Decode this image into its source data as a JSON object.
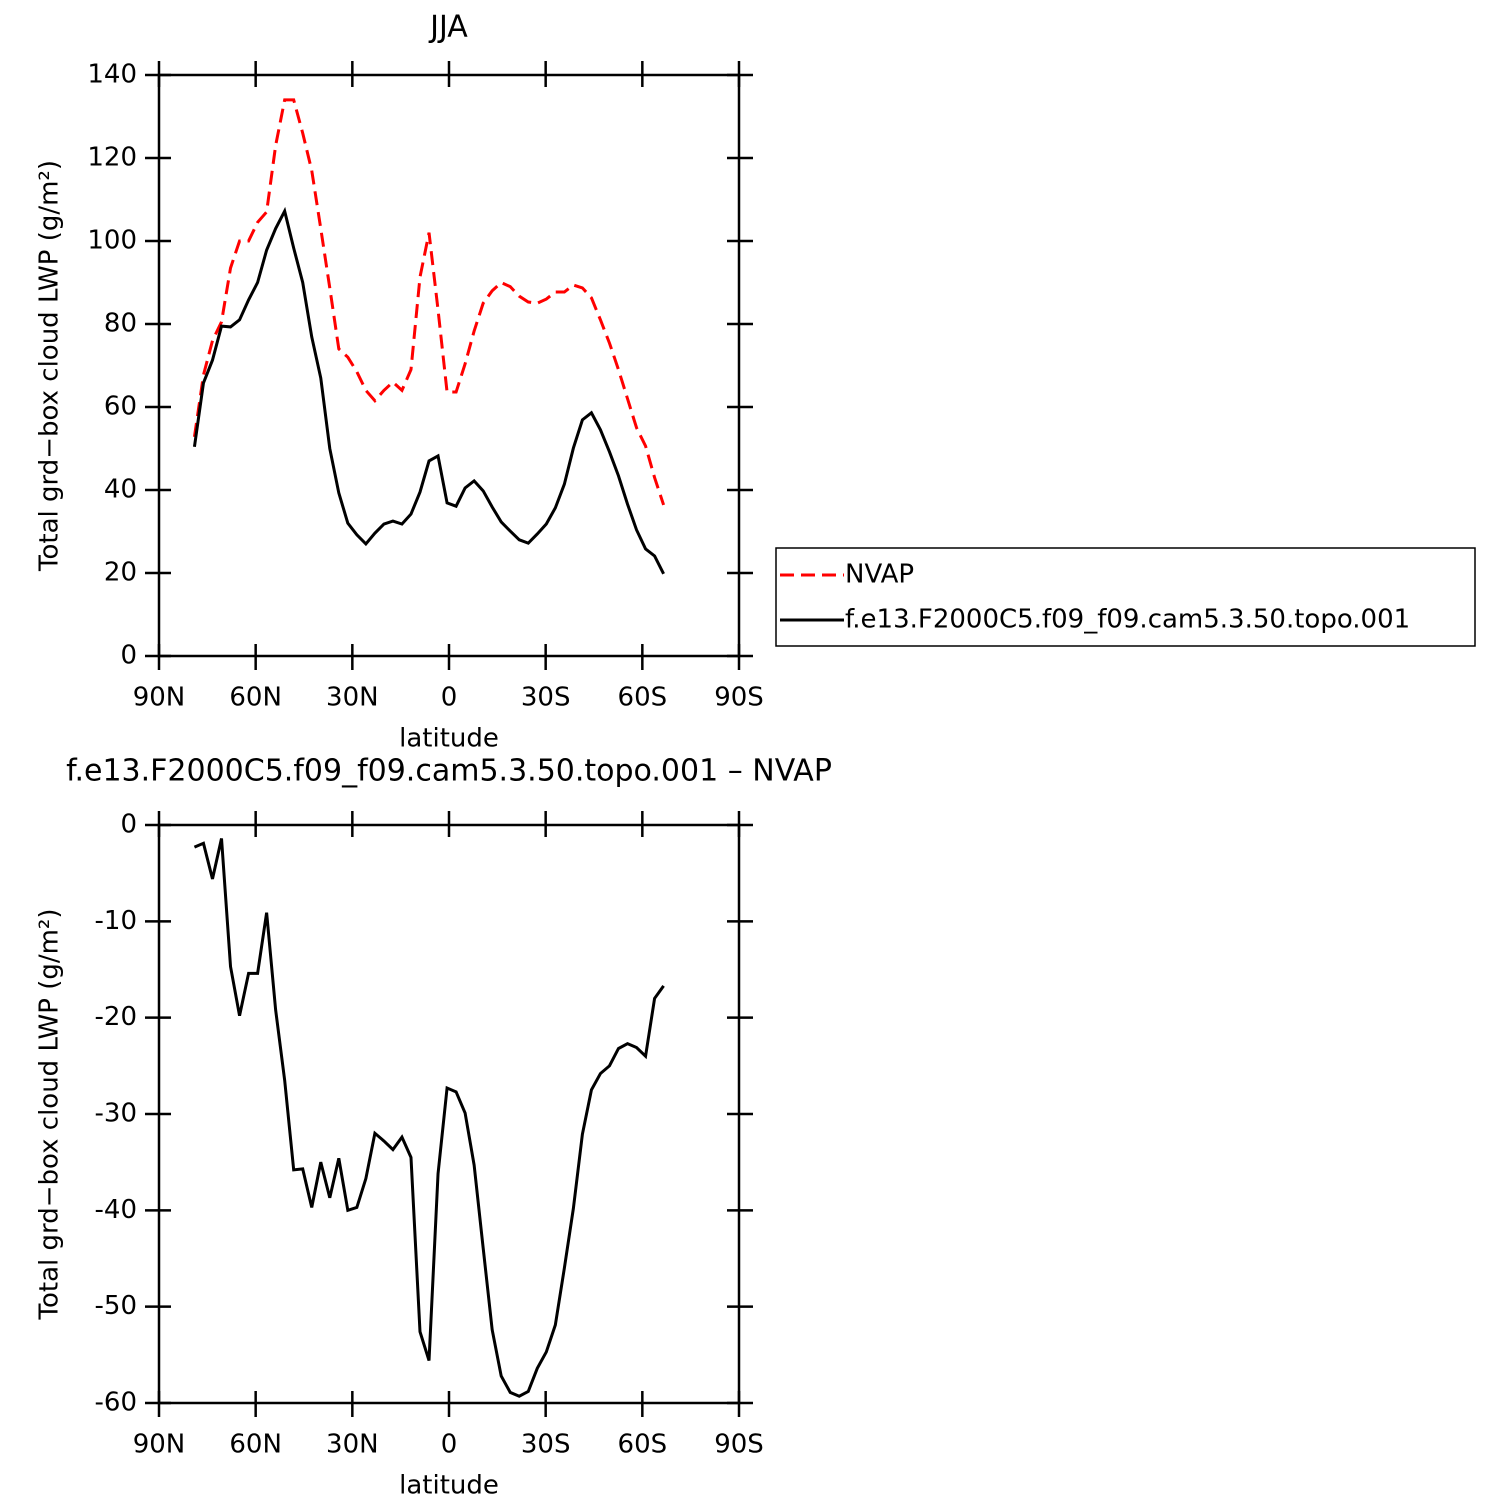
{
  "chart_data": [
    {
      "type": "line",
      "title": "JJA",
      "xlabel": "latitude",
      "ylabel": "Total grd−box cloud LWP (g/m²)",
      "x": [
        79,
        76.2,
        73.4,
        70.6,
        67.8,
        65,
        62.2,
        59.4,
        56.6,
        53.8,
        51,
        48.2,
        45.4,
        42.6,
        39.8,
        37,
        34.2,
        31.4,
        28.6,
        25.8,
        23,
        20.2,
        17.4,
        14.6,
        11.8,
        9,
        6.2,
        3.4,
        0.6,
        -2.2,
        -5,
        -7.8,
        -10.6,
        -13.4,
        -16.2,
        -19,
        -21.8,
        -24.6,
        -27.4,
        -30.2,
        -33,
        -35.8,
        -38.6,
        -41.4,
        -44.2,
        -47,
        -49.8,
        -52.6,
        -55.4,
        -58.2,
        -61,
        -63.8,
        -66.6
      ],
      "series": [
        {
          "name": "NVAP",
          "color": "#ff0000",
          "linestyle": "dashed",
          "values": [
            52.8,
            67.7,
            76,
            80.5,
            93.5,
            100,
            100,
            104.5,
            107,
            123,
            134,
            134,
            126,
            117,
            103,
            88.7,
            74,
            72,
            68.5,
            64,
            61.5,
            64,
            66,
            64,
            69,
            91.3,
            102,
            83.4,
            63.6,
            63.6,
            70.4,
            78.3,
            85,
            88,
            90,
            89,
            86.7,
            85.3,
            85,
            86,
            87.7,
            87.7,
            89.4,
            88.7,
            86.3,
            81,
            75.4,
            69,
            62,
            55,
            50.6,
            43,
            36.4
          ]
        },
        {
          "name": "f.e13.F2000C5.f09_f09.cam5.3.50.topo.001",
          "color": "#000000",
          "linestyle": "solid",
          "values": [
            50.4,
            65.8,
            71.3,
            79.5,
            79.3,
            81,
            85.8,
            90,
            97.8,
            103,
            107.2,
            98.3,
            90,
            76.9,
            67,
            50,
            39.3,
            32,
            29.2,
            27,
            29.6,
            31.8,
            32.5,
            31.8,
            34.2,
            39.5,
            47,
            48.2,
            36.9,
            36.1,
            40.5,
            42.2,
            39.8,
            35.9,
            32.3,
            30.1,
            28,
            27.2,
            29.4,
            31.8,
            35.7,
            41.4,
            50.1,
            56.9,
            58.6,
            54.5,
            49.2,
            43.4,
            36.6,
            30.4,
            25.8,
            24.1,
            19.8
          ]
        }
      ],
      "xlim": [
        90,
        -90
      ],
      "xticks": [
        {
          "value": 90,
          "label": "90N"
        },
        {
          "value": 60,
          "label": "60N"
        },
        {
          "value": 30,
          "label": "30N"
        },
        0,
        {
          "value": -30,
          "label": "30S"
        },
        {
          "value": -60,
          "label": "60S"
        },
        {
          "value": -90,
          "label": "90S"
        }
      ],
      "ylim": [
        0,
        140
      ],
      "yticks": [
        0,
        20,
        40,
        60,
        80,
        100,
        120,
        140
      ],
      "legend": true
    },
    {
      "type": "line",
      "title": "f.e13.F2000C5.f09_f09.cam5.3.50.topo.001 – NVAP",
      "xlabel": "latitude",
      "ylabel": "Total grd−box cloud LWP (g/m²)",
      "x": [
        79,
        76.2,
        73.4,
        70.6,
        67.8,
        65,
        62.2,
        59.4,
        56.6,
        53.8,
        51,
        48.2,
        45.4,
        42.6,
        39.8,
        37,
        34.2,
        31.4,
        28.6,
        25.8,
        23,
        20.2,
        17.4,
        14.6,
        11.8,
        9,
        6.2,
        3.4,
        0.6,
        -2.2,
        -5,
        -7.8,
        -10.6,
        -13.4,
        -16.2,
        -19,
        -21.8,
        -24.6,
        -27.4,
        -30.2,
        -33,
        -35.8,
        -38.6,
        -41.4,
        -44.2,
        -47,
        -49.8,
        -52.6,
        -55.4,
        -58.2,
        -61,
        -63.8,
        -66.6
      ],
      "series": [
        {
          "color": "#000000",
          "linestyle": "solid",
          "values": [
            -2.3,
            -1.9,
            -5.6,
            -1.4,
            -14.7,
            -19.8,
            -15.4,
            -15.4,
            -9.1,
            -19.2,
            -26.5,
            -35.8,
            -35.7,
            -39.7,
            -35,
            -38.7,
            -34.6,
            -40,
            -39.7,
            -36.7,
            -32,
            -32.8,
            -33.7,
            -32.4,
            -34.5,
            -52.6,
            -55.6,
            -36.2,
            -27.3,
            -27.7,
            -29.9,
            -35.3,
            -43.9,
            -52.4,
            -57.2,
            -58.9,
            -59.3,
            -58.8,
            -56.4,
            -54.7,
            -51.9,
            -46,
            -39.8,
            -32.1,
            -27.5,
            -25.8,
            -25,
            -23.2,
            -22.7,
            -23.1,
            -24,
            -18,
            -16.7
          ]
        }
      ],
      "xlim": [
        90,
        -90
      ],
      "xticks": [
        {
          "value": 90,
          "label": "90N"
        },
        {
          "value": 60,
          "label": "60N"
        },
        {
          "value": 30,
          "label": "30N"
        },
        0,
        {
          "value": -30,
          "label": "30S"
        },
        {
          "value": -60,
          "label": "60S"
        },
        {
          "value": -90,
          "label": "90S"
        }
      ],
      "ylim": [
        -60,
        0
      ],
      "yticks": [
        -60,
        -50,
        -40,
        -30,
        -20,
        -10,
        0
      ],
      "legend": false
    }
  ]
}
